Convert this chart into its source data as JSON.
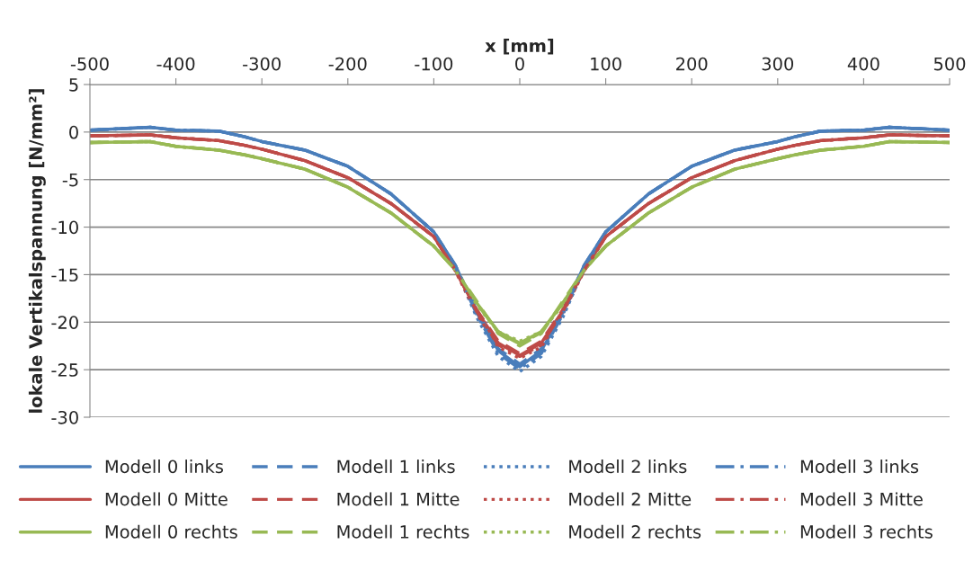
{
  "chart_data": {
    "type": "line",
    "xlabel": "x [mm]",
    "ylabel": "lokale Vertikalspannung [N/mm²]",
    "x": [
      -500,
      -430,
      -400,
      -350,
      -320,
      -300,
      -250,
      -200,
      -150,
      -100,
      -75,
      -50,
      -25,
      0,
      25,
      50,
      75,
      100,
      150,
      200,
      250,
      300,
      320,
      350,
      400,
      430,
      500
    ],
    "xlim": [
      -500,
      500
    ],
    "xticks": [
      -500,
      -400,
      -300,
      -200,
      -100,
      0,
      100,
      200,
      300,
      400,
      500
    ],
    "ylim": [
      -30,
      5
    ],
    "yticks": [
      5,
      0,
      -5,
      -10,
      -15,
      -20,
      -25,
      -30
    ],
    "grid": "y",
    "legend": "bottom",
    "series": [
      {
        "name": "Modell 0 links",
        "color": "#4a7ebb",
        "line_style": "solid",
        "values": [
          0.2,
          0.5,
          0.2,
          0.1,
          -0.5,
          -1.0,
          -1.9,
          -3.6,
          -6.5,
          -10.5,
          -14,
          -19,
          -23,
          -24.7,
          -23,
          -19,
          -14,
          -10.5,
          -6.5,
          -3.6,
          -1.9,
          -1.0,
          -0.5,
          0.1,
          0.2,
          0.5,
          0.2
        ]
      },
      {
        "name": "Modell 0 Mitte",
        "color": "#be4b48",
        "line_style": "solid",
        "values": [
          -0.4,
          -0.3,
          -0.6,
          -0.9,
          -1.4,
          -1.8,
          -3,
          -4.8,
          -7.5,
          -11,
          -14.5,
          -18.8,
          -22.2,
          -23.5,
          -22.2,
          -18.8,
          -14.5,
          -11,
          -7.5,
          -4.8,
          -3,
          -1.8,
          -1.4,
          -0.9,
          -0.6,
          -0.3,
          -0.4
        ]
      },
      {
        "name": "Modell 0 rechts",
        "color": "#98b954",
        "line_style": "solid",
        "values": [
          -1.1,
          -1.0,
          -1.5,
          -1.9,
          -2.4,
          -2.8,
          -3.9,
          -5.8,
          -8.5,
          -12,
          -14.5,
          -18,
          -21,
          -22.2,
          -21,
          -18,
          -14.5,
          -12,
          -8.5,
          -5.8,
          -3.9,
          -2.8,
          -2.4,
          -1.9,
          -1.5,
          -1.0,
          -1.1
        ]
      },
      {
        "name": "Modell 1 links",
        "color": "#4a7ebb",
        "line_style": "dashed",
        "values": [
          0.2,
          0.5,
          0.2,
          0.1,
          -0.5,
          -1.0,
          -1.9,
          -3.6,
          -6.5,
          -10.5,
          -14,
          -18.8,
          -22.8,
          -24.4,
          -22.8,
          -18.8,
          -14,
          -10.5,
          -6.5,
          -3.6,
          -1.9,
          -1.0,
          -0.5,
          0.1,
          0.2,
          0.5,
          0.2
        ]
      },
      {
        "name": "Modell 1 Mitte",
        "color": "#be4b48",
        "line_style": "dashed",
        "values": [
          -0.4,
          -0.3,
          -0.6,
          -0.9,
          -1.4,
          -1.8,
          -3,
          -4.8,
          -7.5,
          -11,
          -14.5,
          -18.7,
          -22,
          -23.3,
          -22,
          -18.7,
          -14.5,
          -11,
          -7.5,
          -4.8,
          -3,
          -1.8,
          -1.4,
          -0.9,
          -0.6,
          -0.3,
          -0.4
        ]
      },
      {
        "name": "Modell 1 rechts",
        "color": "#98b954",
        "line_style": "dashed",
        "values": [
          -1.1,
          -1.0,
          -1.5,
          -1.9,
          -2.4,
          -2.8,
          -3.9,
          -5.8,
          -8.5,
          -12,
          -14.5,
          -17.8,
          -21.2,
          -22.5,
          -21.2,
          -17.8,
          -14.5,
          -12,
          -8.5,
          -5.8,
          -3.9,
          -2.8,
          -2.4,
          -1.9,
          -1.5,
          -1.0,
          -1.1
        ]
      },
      {
        "name": "Modell 2 links",
        "color": "#4a7ebb",
        "line_style": "dotted",
        "values": [
          0.2,
          0.5,
          0.2,
          0.1,
          -0.5,
          -1.0,
          -1.9,
          -3.6,
          -6.5,
          -10.5,
          -14.3,
          -19.5,
          -23.6,
          -25.2,
          -23.6,
          -19.5,
          -14.3,
          -10.5,
          -6.5,
          -3.6,
          -1.9,
          -1.0,
          -0.5,
          0.1,
          0.2,
          0.5,
          0.2
        ]
      },
      {
        "name": "Modell 2 Mitte",
        "color": "#be4b48",
        "line_style": "dotted",
        "values": [
          -0.4,
          -0.3,
          -0.6,
          -0.9,
          -1.4,
          -1.8,
          -3,
          -4.8,
          -7.5,
          -11,
          -14.6,
          -19.1,
          -22.6,
          -23.8,
          -22.6,
          -19.1,
          -14.6,
          -11,
          -7.5,
          -4.8,
          -3,
          -1.8,
          -1.4,
          -0.9,
          -0.6,
          -0.3,
          -0.4
        ]
      },
      {
        "name": "Modell 2 rechts",
        "color": "#98b954",
        "line_style": "dotted",
        "values": [
          -1.1,
          -1.0,
          -1.5,
          -1.9,
          -2.4,
          -2.8,
          -3.9,
          -5.8,
          -8.5,
          -12,
          -14.5,
          -18.2,
          -21,
          -22.0,
          -21,
          -18.2,
          -14.5,
          -12,
          -8.5,
          -5.8,
          -3.9,
          -2.8,
          -2.4,
          -1.9,
          -1.5,
          -1.0,
          -1.1
        ]
      },
      {
        "name": "Modell 3 links",
        "color": "#4a7ebb",
        "line_style": "dashdot",
        "values": [
          0.2,
          0.5,
          0.2,
          0.1,
          -0.5,
          -1.0,
          -1.9,
          -3.6,
          -6.5,
          -10.5,
          -14.1,
          -19.2,
          -23.3,
          -24.9,
          -23.3,
          -19.2,
          -14.1,
          -10.5,
          -6.5,
          -3.6,
          -1.9,
          -1.0,
          -0.5,
          0.1,
          0.2,
          0.5,
          0.2
        ]
      },
      {
        "name": "Modell 3 Mitte",
        "color": "#be4b48",
        "line_style": "dashdot",
        "values": [
          -0.4,
          -0.3,
          -0.6,
          -0.9,
          -1.4,
          -1.8,
          -3,
          -4.8,
          -7.5,
          -11,
          -14.5,
          -18.9,
          -22.4,
          -23.6,
          -22.4,
          -18.9,
          -14.5,
          -11,
          -7.5,
          -4.8,
          -3,
          -1.8,
          -1.4,
          -0.9,
          -0.6,
          -0.3,
          -0.4
        ]
      },
      {
        "name": "Modell 3 rechts",
        "color": "#98b954",
        "line_style": "dashdot",
        "values": [
          -1.1,
          -1.0,
          -1.5,
          -1.9,
          -2.4,
          -2.8,
          -3.9,
          -5.8,
          -8.5,
          -12,
          -14.5,
          -18,
          -21.1,
          -22.3,
          -21.1,
          -18,
          -14.5,
          -12,
          -8.5,
          -5.8,
          -3.9,
          -2.8,
          -2.4,
          -1.9,
          -1.5,
          -1.0,
          -1.1
        ]
      }
    ]
  }
}
